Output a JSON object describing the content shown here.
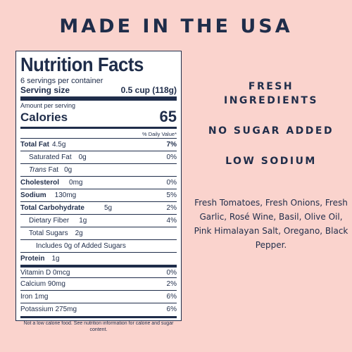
{
  "headline": "MADE IN THE USA",
  "label": {
    "title": "Nutrition Facts",
    "servings_per_container": "6 servings per container",
    "serving_size_label": "Serving size",
    "serving_size_value": "0.5 cup (118g)",
    "amount_per_serving": "Amount per serving",
    "calories_label": "Calories",
    "calories_value": "65",
    "daily_value_header": "% Daily Value*",
    "nutrients": [
      {
        "name": "Total Fat",
        "amount": "4.5g",
        "dv": "7%"
      },
      {
        "name": "Saturated Fat",
        "amount": "0g",
        "dv": "0%"
      },
      {
        "name_italic": "Trans",
        "name": "Fat",
        "amount": "0g",
        "dv": ""
      },
      {
        "name": "Cholesterol",
        "amount": "0mg",
        "dv": "0%"
      },
      {
        "name": "Sodium",
        "amount": "130mg",
        "dv": "5%"
      },
      {
        "name": "Total Carbohydrate",
        "amount": "5g",
        "dv": "2%"
      },
      {
        "name": "Dietary Fiber",
        "amount": "1g",
        "dv": "4%"
      },
      {
        "name": "Total Sugars",
        "amount": "2g",
        "dv": ""
      },
      {
        "name": "Includes 0g of Added Sugars",
        "amount": "",
        "dv": ""
      },
      {
        "name": "Protein",
        "amount": "1g",
        "dv": ""
      }
    ],
    "vitamins": [
      {
        "name": "Vitamin D 0mcg",
        "dv": "0%"
      },
      {
        "name": "Calcium 90mg",
        "dv": "2%"
      },
      {
        "name": "Iron 1mg",
        "dv": "6%"
      },
      {
        "name": "Potassium 275mg",
        "dv": "6%"
      }
    ],
    "footnote": "Not a low calorie food. See nutrition information for calorie and sugar content."
  },
  "claims": {
    "fresh_ingredients": "FRESH INGREDIENTS",
    "no_sugar_added": "NO SUGAR ADDED",
    "low_sodium": "LOW SODIUM"
  },
  "ingredients": "Fresh Tomatoes, Fresh Onions, Fresh Garlic, Rosé Wine, Basil, Olive Oil, Pink Himalayan Salt, Oregano, Black Pepper.",
  "colors": {
    "background": "#fad3cd",
    "navy": "#1f2d4a",
    "label_bg": "#ffffff"
  }
}
